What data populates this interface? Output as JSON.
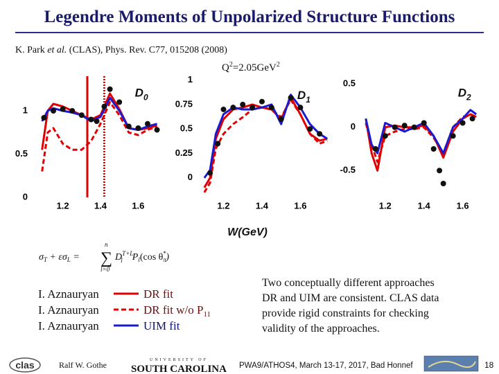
{
  "header": {
    "title": "Legendre Moments of Unpolarized Structure Functions"
  },
  "citation": {
    "authors": "K. Park",
    "etal": "et al.",
    "rest": "(CLAS), Phys. Rev. C77, 015208 (2008)"
  },
  "kinematics": {
    "q": "Q",
    "q_exp": "2",
    "value": "=2.05GeV",
    "unit_exp": "2"
  },
  "x_axis_label": "W(GeV)",
  "chart_data": [
    {
      "type": "line",
      "label": "D",
      "label_sub": "0",
      "xlim": [
        1.08,
        1.72
      ],
      "ylim": [
        0,
        1.4
      ],
      "xticks": [
        1.2,
        1.4,
        1.6
      ],
      "yticks": [
        0,
        0.5,
        1
      ],
      "vlines": [
        {
          "value": 1.33,
          "color": "#e00000",
          "dash": false
        },
        {
          "value": 1.42,
          "color": "#e00000",
          "dash": true
        }
      ],
      "x": [
        1.09,
        1.12,
        1.15,
        1.2,
        1.25,
        1.3,
        1.35,
        1.4,
        1.45,
        1.5,
        1.55,
        1.6,
        1.65,
        1.7
      ],
      "series": [
        {
          "mode": "line",
          "color": "#e00000",
          "dash": true,
          "values": [
            0.3,
            0.75,
            0.8,
            0.62,
            0.55,
            0.55,
            0.65,
            0.85,
            1.1,
            0.95,
            0.75,
            0.72,
            0.78,
            0.82
          ]
        },
        {
          "mode": "line",
          "color": "#e00000",
          "dash": false,
          "values": [
            0.55,
            1.0,
            1.08,
            1.05,
            1.0,
            0.95,
            0.9,
            0.95,
            1.2,
            1.02,
            0.8,
            0.78,
            0.8,
            0.83
          ]
        },
        {
          "mode": "line",
          "color": "#1a1ad0",
          "dash": false,
          "values": [
            0.88,
            1.0,
            1.03,
            1.0,
            0.98,
            0.95,
            0.88,
            0.93,
            1.15,
            1.0,
            0.8,
            0.78,
            0.82,
            0.85
          ]
        },
        {
          "mode": "markers",
          "color": "#111111",
          "x": [
            1.1,
            1.15,
            1.2,
            1.25,
            1.3,
            1.35,
            1.38,
            1.42,
            1.45,
            1.5,
            1.55,
            1.6,
            1.65,
            1.7
          ],
          "values": [
            0.92,
            1.0,
            1.02,
            1.0,
            0.95,
            0.9,
            0.88,
            1.05,
            1.25,
            1.1,
            0.82,
            0.8,
            0.85,
            0.78
          ]
        }
      ]
    },
    {
      "type": "line",
      "label": "D",
      "label_sub": "1",
      "xlim": [
        1.09,
        1.75
      ],
      "ylim": [
        -0.2,
        1.04
      ],
      "xticks": [
        1.2,
        1.4,
        1.6
      ],
      "yticks": [
        0,
        0.25,
        0.5,
        0.75,
        1
      ],
      "x": [
        1.1,
        1.13,
        1.16,
        1.2,
        1.25,
        1.3,
        1.35,
        1.4,
        1.45,
        1.5,
        1.55,
        1.6,
        1.65,
        1.7,
        1.74
      ],
      "series": [
        {
          "mode": "line",
          "color": "#e00000",
          "dash": true,
          "values": [
            -0.15,
            -0.05,
            0.3,
            0.45,
            0.55,
            0.62,
            0.7,
            0.72,
            0.7,
            0.62,
            0.8,
            0.65,
            0.45,
            0.35,
            0.38
          ]
        },
        {
          "mode": "line",
          "color": "#e00000",
          "dash": false,
          "values": [
            -0.1,
            0.0,
            0.4,
            0.6,
            0.7,
            0.72,
            0.75,
            0.72,
            0.7,
            0.6,
            0.82,
            0.65,
            0.45,
            0.38,
            0.4
          ]
        },
        {
          "mode": "line",
          "color": "#1a1ad0",
          "dash": false,
          "values": [
            0.0,
            0.08,
            0.45,
            0.65,
            0.72,
            0.7,
            0.7,
            0.72,
            0.75,
            0.55,
            0.85,
            0.72,
            0.55,
            0.45,
            0.4
          ]
        },
        {
          "mode": "markers",
          "color": "#111111",
          "x": [
            1.13,
            1.17,
            1.2,
            1.25,
            1.3,
            1.35,
            1.4,
            1.45,
            1.5,
            1.55,
            1.6,
            1.65,
            1.7
          ],
          "values": [
            0.05,
            0.35,
            0.7,
            0.72,
            0.75,
            0.72,
            0.78,
            0.72,
            0.6,
            0.82,
            0.72,
            0.5,
            0.45
          ]
        }
      ]
    },
    {
      "type": "line",
      "label": "D",
      "label_sub": "2",
      "xlim": [
        1.09,
        1.68
      ],
      "ylim": [
        -0.81,
        0.59
      ],
      "xticks": [
        1.2,
        1.4,
        1.6
      ],
      "yticks": [
        -0.5,
        0,
        0.5
      ],
      "x": [
        1.1,
        1.13,
        1.16,
        1.2,
        1.25,
        1.3,
        1.35,
        1.4,
        1.45,
        1.5,
        1.55,
        1.6,
        1.64,
        1.67
      ],
      "series": [
        {
          "mode": "line",
          "color": "#e00000",
          "dash": true,
          "values": [
            0.05,
            -0.2,
            -0.4,
            -0.1,
            -0.05,
            -0.02,
            -0.02,
            0.0,
            -0.12,
            -0.3,
            0.0,
            0.12,
            0.15,
            0.12
          ]
        },
        {
          "mode": "line",
          "color": "#e00000",
          "dash": false,
          "values": [
            0.1,
            -0.3,
            -0.5,
            0.0,
            0.02,
            0.0,
            0.0,
            0.02,
            -0.1,
            -0.35,
            -0.05,
            0.1,
            0.15,
            0.12
          ]
        },
        {
          "mode": "line",
          "color": "#1a1ad0",
          "dash": false,
          "values": [
            0.1,
            -0.2,
            -0.3,
            0.05,
            0.0,
            -0.05,
            0.0,
            0.05,
            -0.1,
            -0.3,
            0.0,
            0.1,
            0.2,
            0.15
          ]
        },
        {
          "mode": "markers",
          "color": "#111111",
          "x": [
            1.15,
            1.2,
            1.25,
            1.3,
            1.35,
            1.4,
            1.45,
            1.48,
            1.5,
            1.55,
            1.6,
            1.65
          ],
          "values": [
            -0.25,
            -0.1,
            0.0,
            0.02,
            0.0,
            0.05,
            -0.25,
            -0.5,
            -0.65,
            -0.1,
            0.05,
            0.1
          ]
        }
      ]
    }
  ],
  "formula": {
    "lhs1": "σ",
    "lhs1_sub": "T",
    "plus": " + εσ",
    "lhs2_sub": "L",
    "eq": " = ",
    "sum": "∑",
    "sum_top": "n",
    "sum_bottom": "l=0",
    "d": "D",
    "d_sub": "l",
    "d_sup": "T+L",
    "p": "P",
    "p_sub": "l",
    "arg": "(cos θ",
    "arg_sub": "π",
    "arg_sup": "*",
    "close": ")"
  },
  "legend": {
    "authors": [
      "I. Aznauryan",
      "I. Aznauryan",
      "I. Aznauryan"
    ],
    "entries": [
      "DR fit",
      "DR fit w/o P",
      "UIM fit"
    ],
    "entry2_sub": "11"
  },
  "note": {
    "lines": [
      "Two conceptually different approaches",
      "DR and UIM are consistent. CLAS data",
      "provide rigid constraints for checking",
      "validity of the approaches."
    ]
  },
  "footer": {
    "logo_left": "clas",
    "speaker": "Ralf  W. Gothe",
    "logo_top": "UNIVERSITY OF",
    "logo_main": "SOUTH CAROLINA",
    "event": "PWA9/ATHOS4, March 13-17, 2017, Bad Honnef",
    "page": "18"
  }
}
